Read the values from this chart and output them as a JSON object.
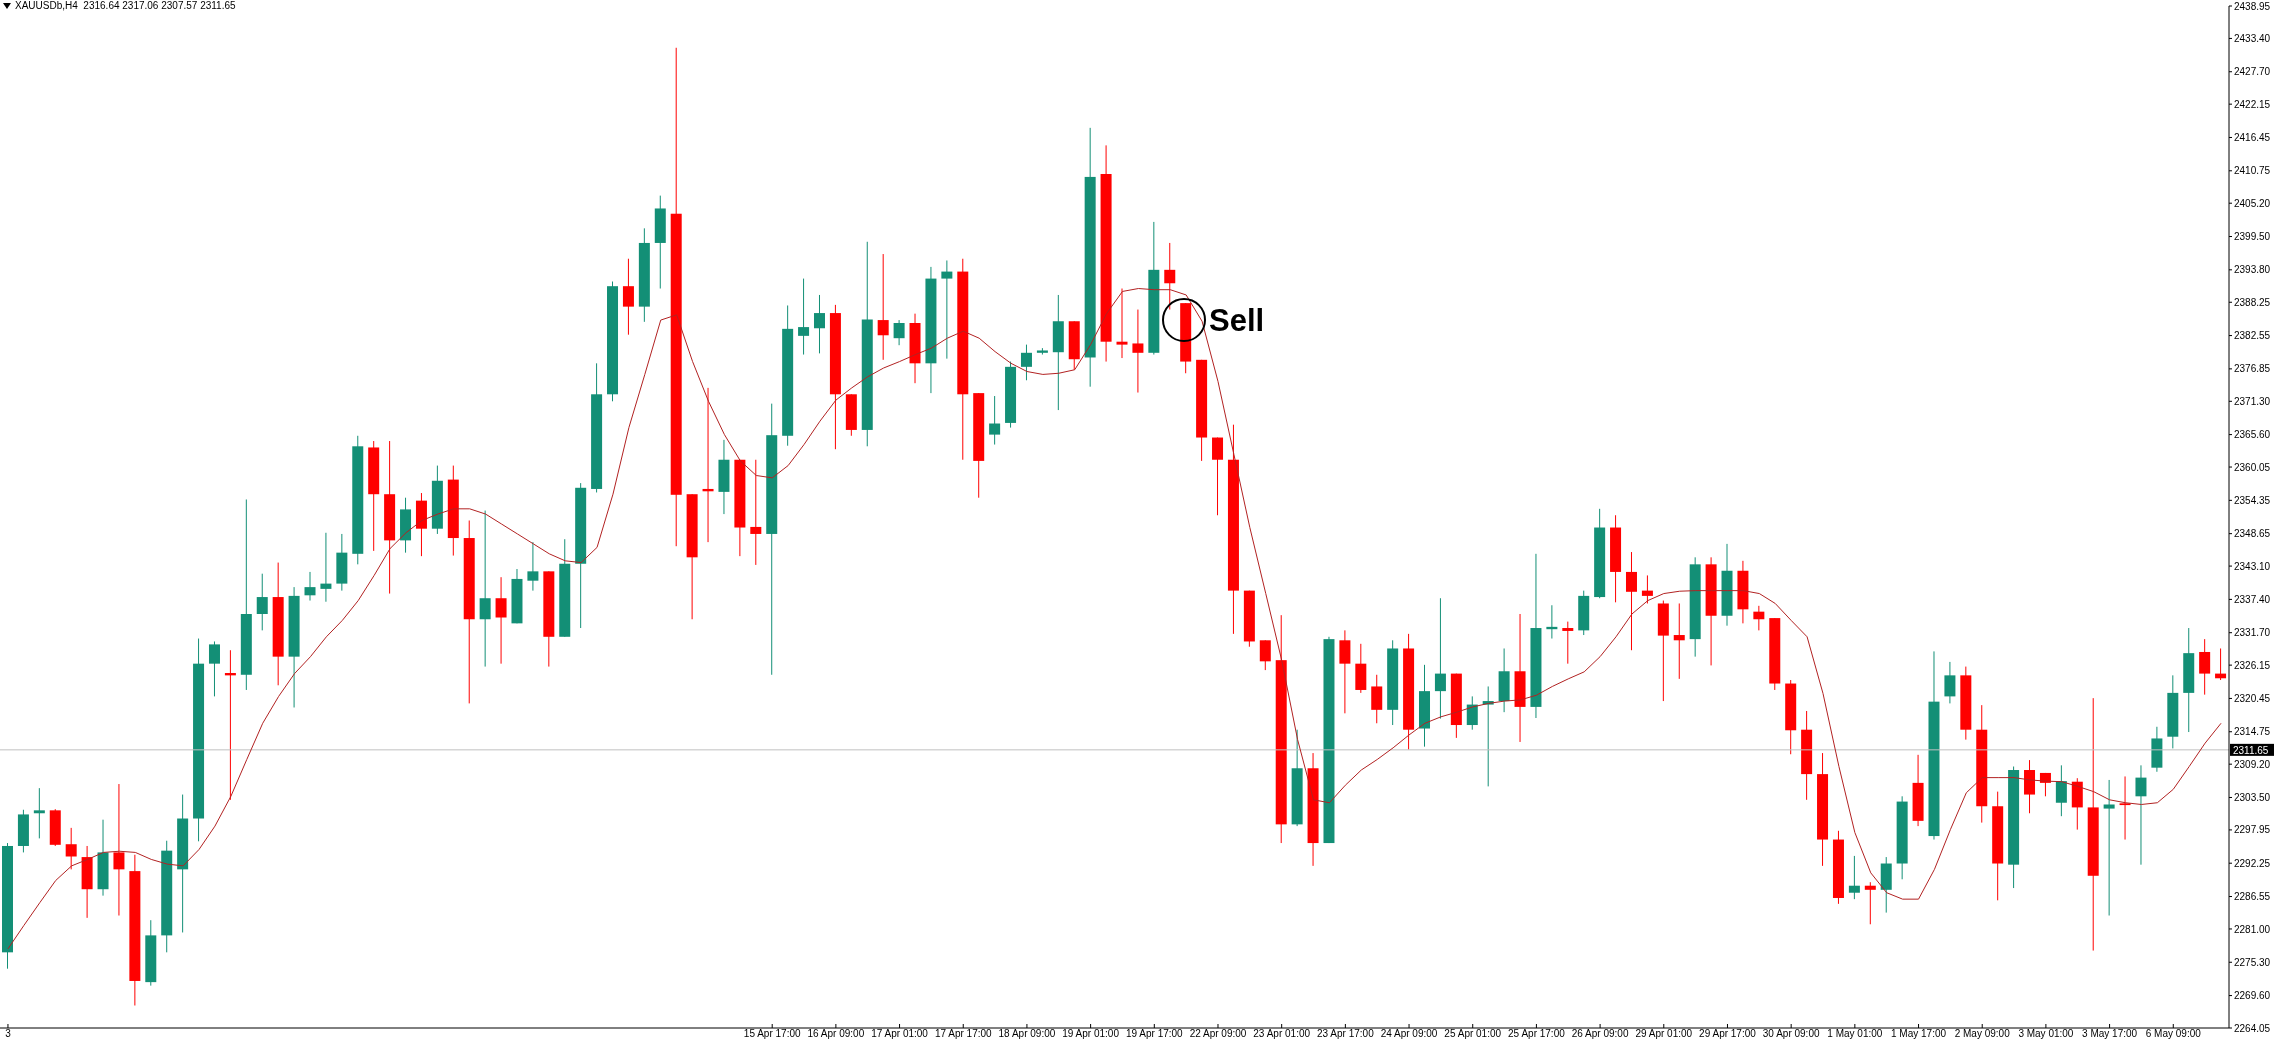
{
  "chart_data": {
    "type": "candlestick",
    "title": "XAUUSDb,H4  2316.64 2317.06 2307.57 2311.65",
    "categories": [
      "3",
      null,
      null,
      null,
      null,
      null,
      null,
      null,
      null,
      null,
      null,
      null,
      null,
      null,
      null,
      null,
      null,
      null,
      null,
      null,
      null,
      null,
      null,
      null,
      null,
      null,
      null,
      null,
      null,
      null,
      null,
      null,
      null,
      null,
      null,
      null,
      null,
      null,
      null,
      null,
      null,
      null,
      null,
      null,
      null,
      null,
      null,
      null,
      "15 Apr 17:00",
      null,
      null,
      null,
      "16 Apr 09:00",
      null,
      null,
      null,
      "17 Apr 01:00",
      null,
      null,
      null,
      "17 Apr 17:00",
      null,
      null,
      null,
      "18 Apr 09:00",
      null,
      null,
      null,
      "19 Apr 01:00",
      null,
      null,
      null,
      "19 Apr 17:00",
      null,
      null,
      null,
      "22 Apr 09:00",
      null,
      null,
      null,
      "23 Apr 01:00",
      null,
      null,
      null,
      "23 Apr 17:00",
      null,
      null,
      null,
      "24 Apr 09:00",
      null,
      null,
      null,
      "25 Apr 01:00",
      null,
      null,
      null,
      "25 Apr 17:00",
      null,
      null,
      null,
      "26 Apr 09:00",
      null,
      null,
      null,
      "29 Apr 01:00",
      null,
      null,
      null,
      "29 Apr 17:00",
      null,
      null,
      null,
      "30 Apr 09:00",
      null,
      null,
      null,
      "1 May 01:00",
      null,
      null,
      null,
      "1 May 17:00",
      null,
      null,
      null,
      "2 May 09:00",
      null,
      null,
      null,
      "3 May 01:00",
      null,
      null,
      null,
      "3 May 17:00",
      null,
      null,
      null,
      "6 May 09:00",
      null,
      null,
      null
    ],
    "ohlc": [
      [
        2277.0,
        2295.7,
        2274.2,
        2295.2
      ],
      [
        2295.2,
        2301.4,
        2294.1,
        2300.6
      ],
      [
        2300.8,
        2305.1,
        2296.5,
        2301.3
      ],
      [
        2301.3,
        2301.5,
        2295.2,
        2295.4
      ],
      [
        2295.5,
        2298.3,
        2291.2,
        2293.4
      ],
      [
        2293.3,
        2295.2,
        2282.9,
        2287.8
      ],
      [
        2287.8,
        2299.7,
        2286.7,
        2294.1
      ],
      [
        2294.1,
        2305.8,
        2283.3,
        2291.2
      ],
      [
        2290.9,
        2293.7,
        2267.9,
        2272.1
      ],
      [
        2271.9,
        2282.5,
        2271.3,
        2279.9
      ],
      [
        2279.9,
        2296.1,
        2277.0,
        2294.4
      ],
      [
        2291.2,
        2304.0,
        2280.4,
        2299.9
      ],
      [
        2299.9,
        2330.7,
        2296.0,
        2326.4
      ],
      [
        2326.4,
        2330.2,
        2320.8,
        2329.7
      ],
      [
        2324.8,
        2328.7,
        2303.1,
        2324.4
      ],
      [
        2324.5,
        2354.5,
        2321.9,
        2334.9
      ],
      [
        2334.9,
        2341.8,
        2332.1,
        2337.8
      ],
      [
        2337.8,
        2343.7,
        2322.7,
        2327.6
      ],
      [
        2327.6,
        2339.5,
        2318.9,
        2338.0
      ],
      [
        2338.1,
        2342.1,
        2337.2,
        2339.5
      ],
      [
        2339.2,
        2348.8,
        2337.0,
        2340.1
      ],
      [
        2340.1,
        2348.6,
        2338.9,
        2345.4
      ],
      [
        2345.2,
        2365.4,
        2343.4,
        2363.6
      ],
      [
        2363.4,
        2364.5,
        2345.7,
        2355.4
      ],
      [
        2355.4,
        2364.5,
        2338.4,
        2347.5
      ],
      [
        2347.5,
        2354.8,
        2345.4,
        2352.8
      ],
      [
        2354.3,
        2355.6,
        2344.8,
        2349.5
      ],
      [
        2349.5,
        2360.3,
        2348.6,
        2357.7
      ],
      [
        2357.9,
        2360.3,
        2344.9,
        2347.9
      ],
      [
        2347.9,
        2350.9,
        2319.6,
        2334.0
      ],
      [
        2334.0,
        2352.6,
        2325.9,
        2337.6
      ],
      [
        2337.6,
        2341.2,
        2326.4,
        2334.3
      ],
      [
        2333.3,
        2342.6,
        2333.3,
        2340.9
      ],
      [
        2340.6,
        2347.2,
        2338.9,
        2342.2
      ],
      [
        2342.2,
        2342.2,
        2325.9,
        2331.0
      ],
      [
        2331.0,
        2347.7,
        2331.0,
        2343.5
      ],
      [
        2343.5,
        2357.3,
        2332.5,
        2356.5
      ],
      [
        2356.3,
        2377.8,
        2355.7,
        2372.5
      ],
      [
        2372.5,
        2391.8,
        2371.3,
        2391.0
      ],
      [
        2391.0,
        2395.7,
        2382.7,
        2387.5
      ],
      [
        2387.5,
        2400.9,
        2384.9,
        2398.4
      ],
      [
        2398.4,
        2406.5,
        2390.6,
        2404.3
      ],
      [
        2403.4,
        2431.8,
        2346.5,
        2355.3
      ],
      [
        2355.4,
        2355.4,
        2334.0,
        2344.6
      ],
      [
        2356.3,
        2373.6,
        2347.2,
        2355.9
      ],
      [
        2355.8,
        2364.7,
        2352.0,
        2361.3
      ],
      [
        2361.3,
        2361.3,
        2344.8,
        2349.7
      ],
      [
        2349.8,
        2361.3,
        2343.3,
        2348.6
      ],
      [
        2348.6,
        2370.9,
        2324.5,
        2365.5
      ],
      [
        2365.4,
        2387.7,
        2363.7,
        2383.7
      ],
      [
        2382.5,
        2392.3,
        2379.3,
        2384.0
      ],
      [
        2383.8,
        2389.5,
        2379.5,
        2386.4
      ],
      [
        2386.4,
        2387.8,
        2363.1,
        2372.5
      ],
      [
        2372.5,
        2372.5,
        2365.4,
        2366.4
      ],
      [
        2366.4,
        2398.6,
        2363.6,
        2385.3
      ],
      [
        2385.2,
        2396.5,
        2378.4,
        2382.6
      ],
      [
        2382.1,
        2385.2,
        2380.9,
        2384.7
      ],
      [
        2384.7,
        2386.3,
        2374.4,
        2377.8
      ],
      [
        2377.8,
        2394.3,
        2372.7,
        2392.3
      ],
      [
        2392.3,
        2395.4,
        2378.6,
        2393.5
      ],
      [
        2393.5,
        2395.7,
        2361.3,
        2372.5
      ],
      [
        2372.7,
        2372.7,
        2354.8,
        2361.1
      ],
      [
        2365.6,
        2372.2,
        2363.9,
        2367.5
      ],
      [
        2367.6,
        2378.1,
        2366.8,
        2377.2
      ],
      [
        2377.2,
        2381.0,
        2374.9,
        2379.6
      ],
      [
        2379.6,
        2380.4,
        2379.3,
        2380.0
      ],
      [
        2379.7,
        2389.5,
        2369.8,
        2385.0
      ],
      [
        2385.0,
        2385.0,
        2376.7,
        2378.5
      ],
      [
        2378.8,
        2418.1,
        2373.8,
        2409.7
      ],
      [
        2410.2,
        2415.1,
        2378.1,
        2381.5
      ],
      [
        2381.5,
        2390.6,
        2378.7,
        2381.0
      ],
      [
        2381.2,
        2387.0,
        2372.8,
        2379.6
      ],
      [
        2379.6,
        2402.0,
        2379.3,
        2393.8
      ],
      [
        2393.8,
        2398.4,
        2387.0,
        2391.5
      ],
      [
        2388.1,
        2388.1,
        2376.1,
        2378.1
      ],
      [
        2378.4,
        2378.4,
        2361.1,
        2365.1
      ],
      [
        2365.1,
        2365.1,
        2351.8,
        2361.3
      ],
      [
        2361.3,
        2367.3,
        2331.5,
        2338.9
      ],
      [
        2338.9,
        2338.9,
        2329.3,
        2330.2
      ],
      [
        2330.4,
        2330.4,
        2325.3,
        2326.8
      ],
      [
        2327.0,
        2334.7,
        2295.7,
        2298.9
      ],
      [
        2298.9,
        2315.1,
        2298.6,
        2308.5
      ],
      [
        2308.5,
        2311.1,
        2291.8,
        2295.7
      ],
      [
        2295.7,
        2331.0,
        2295.7,
        2330.6
      ],
      [
        2330.4,
        2332.1,
        2317.9,
        2326.4
      ],
      [
        2326.4,
        2329.8,
        2321.4,
        2321.9
      ],
      [
        2322.5,
        2324.5,
        2316.2,
        2318.5
      ],
      [
        2318.5,
        2330.4,
        2315.9,
        2329.0
      ],
      [
        2329.0,
        2331.5,
        2311.7,
        2315.1
      ],
      [
        2315.3,
        2326.2,
        2312.2,
        2321.7
      ],
      [
        2321.7,
        2337.6,
        2317.0,
        2324.7
      ],
      [
        2324.7,
        2324.7,
        2313.7,
        2315.9
      ],
      [
        2315.9,
        2320.8,
        2315.1,
        2319.4
      ],
      [
        2319.4,
        2322.5,
        2305.4,
        2320.0
      ],
      [
        2320.0,
        2329.0,
        2318.1,
        2325.1
      ],
      [
        2325.1,
        2334.9,
        2313.0,
        2319.0
      ],
      [
        2319.0,
        2345.2,
        2317.1,
        2332.5
      ],
      [
        2332.3,
        2336.4,
        2330.7,
        2332.7
      ],
      [
        2332.5,
        2333.6,
        2326.4,
        2332.0
      ],
      [
        2332.1,
        2338.9,
        2331.3,
        2338.0
      ],
      [
        2337.8,
        2352.9,
        2337.6,
        2349.7
      ],
      [
        2349.7,
        2351.8,
        2336.9,
        2342.1
      ],
      [
        2342.1,
        2345.5,
        2328.7,
        2338.7
      ],
      [
        2338.9,
        2341.5,
        2336.7,
        2338.0
      ],
      [
        2336.7,
        2337.2,
        2320.0,
        2331.2
      ],
      [
        2331.3,
        2336.7,
        2323.8,
        2330.4
      ],
      [
        2330.6,
        2344.6,
        2327.6,
        2343.4
      ],
      [
        2343.4,
        2344.6,
        2326.1,
        2334.6
      ],
      [
        2334.6,
        2346.9,
        2332.9,
        2342.3
      ],
      [
        2342.3,
        2344.0,
        2333.3,
        2335.7
      ],
      [
        2335.3,
        2336.3,
        2332.1,
        2334.0
      ],
      [
        2334.2,
        2334.2,
        2321.9,
        2323.0
      ],
      [
        2323.0,
        2323.6,
        2310.9,
        2315.0
      ],
      [
        2315.1,
        2318.3,
        2303.1,
        2307.5
      ],
      [
        2307.5,
        2311.1,
        2291.8,
        2296.3
      ],
      [
        2296.3,
        2297.8,
        2285.3,
        2286.3
      ],
      [
        2287.2,
        2293.5,
        2286.1,
        2288.4
      ],
      [
        2288.4,
        2289.0,
        2281.8,
        2287.7
      ],
      [
        2287.7,
        2293.3,
        2283.8,
        2292.2
      ],
      [
        2292.2,
        2303.7,
        2289.5,
        2302.8
      ],
      [
        2306.0,
        2310.8,
        2298.6,
        2299.5
      ],
      [
        2296.9,
        2328.5,
        2296.3,
        2319.9
      ],
      [
        2320.8,
        2326.7,
        2319.6,
        2324.4
      ],
      [
        2324.4,
        2325.9,
        2313.4,
        2315.1
      ],
      [
        2315.1,
        2319.3,
        2299.2,
        2302.0
      ],
      [
        2302.0,
        2304.5,
        2285.9,
        2292.2
      ],
      [
        2292.0,
        2308.8,
        2288.0,
        2308.2
      ],
      [
        2308.2,
        2309.9,
        2300.8,
        2304.0
      ],
      [
        2307.7,
        2307.7,
        2303.7,
        2306.0
      ],
      [
        2302.6,
        2309.0,
        2300.3,
        2306.3
      ],
      [
        2306.2,
        2306.8,
        2298.0,
        2301.8
      ],
      [
        2301.8,
        2320.5,
        2277.3,
        2290.1
      ],
      [
        2301.6,
        2306.5,
        2283.3,
        2302.3
      ],
      [
        2302.5,
        2307.1,
        2296.3,
        2302.2
      ],
      [
        2303.7,
        2309.0,
        2292.0,
        2306.9
      ],
      [
        2308.6,
        2315.6,
        2307.9,
        2313.6
      ],
      [
        2313.9,
        2324.4,
        2311.9,
        2321.4
      ],
      [
        2321.4,
        2332.5,
        2314.7,
        2328.2
      ],
      [
        2328.4,
        2330.6,
        2321.1,
        2324.7
      ],
      [
        2324.7,
        2329.0,
        2323.6,
        2323.9
      ]
    ],
    "colors": [
      "#138f76",
      "#138f76",
      "#138f76",
      "#ff0000",
      "#ff0000",
      "#ff0000",
      "#138f76",
      "#ff0000",
      "#ff0000",
      "#138f76",
      "#138f76",
      "#138f76",
      "#138f76",
      "#138f76",
      "#ff0000",
      "#138f76",
      "#138f76",
      "#ff0000",
      "#138f76",
      "#138f76",
      "#138f76",
      "#138f76",
      "#138f76",
      "#ff0000",
      "#ff0000",
      "#138f76",
      "#ff0000",
      "#138f76",
      "#ff0000",
      "#ff0000",
      "#138f76",
      "#ff0000",
      "#138f76",
      "#138f76",
      "#ff0000",
      "#138f76",
      "#138f76",
      "#138f76",
      "#138f76",
      "#ff0000",
      "#138f76",
      "#138f76",
      "#ff0000",
      "#ff0000",
      "#ff0000",
      "#138f76",
      "#ff0000",
      "#ff0000",
      "#138f76",
      "#138f76",
      "#138f76",
      "#138f76",
      "#ff0000",
      "#ff0000",
      "#138f76",
      "#ff0000",
      "#138f76",
      "#ff0000",
      "#138f76",
      "#138f76",
      "#ff0000",
      "#ff0000",
      "#138f76",
      "#138f76",
      "#138f76",
      "#138f76",
      "#138f76",
      "#ff0000",
      "#138f76",
      "#ff0000",
      "#ff0000",
      "#ff0000",
      "#138f76",
      "#ff0000",
      "#ff0000",
      "#ff0000",
      "#ff0000",
      "#ff0000",
      "#ff0000",
      "#ff0000",
      "#ff0000",
      "#138f76",
      "#ff0000",
      "#138f76",
      "#ff0000",
      "#ff0000",
      "#ff0000",
      "#138f76",
      "#ff0000",
      "#138f76",
      "#138f76",
      "#ff0000",
      "#138f76",
      "#138f76",
      "#138f76",
      "#ff0000",
      "#138f76",
      "#138f76",
      "#ff0000",
      "#138f76",
      "#138f76",
      "#ff0000",
      "#ff0000",
      "#ff0000",
      "#ff0000",
      "#ff0000",
      "#138f76",
      "#ff0000",
      "#138f76",
      "#ff0000",
      "#ff0000",
      "#ff0000",
      "#ff0000",
      "#ff0000",
      "#ff0000",
      "#ff0000",
      "#138f76",
      "#ff0000",
      "#138f76",
      "#138f76",
      "#ff0000",
      "#138f76",
      "#138f76",
      "#ff0000",
      "#ff0000",
      "#ff0000",
      "#138f76",
      "#ff0000",
      "#ff0000",
      "#138f76",
      "#ff0000",
      "#ff0000",
      "#138f76",
      "#ff0000",
      "#138f76",
      "#138f76",
      "#138f76",
      "#138f76",
      "#ff0000",
      "#ff0000"
    ],
    "series": [
      {
        "type": "line",
        "color": "#b22222",
        "values": [
          2277.6,
          2281.6,
          2285.5,
          2289.3,
          2291.8,
          2292.9,
          2294.1,
          2294.3,
          2294.1,
          2292.9,
          2292.1,
          2291.8,
          2294.6,
          2298.6,
          2303.7,
          2310.0,
          2316.2,
          2320.8,
          2324.7,
          2327.6,
          2331.0,
          2333.8,
          2337.2,
          2341.5,
          2346.1,
          2348.8,
          2350.9,
          2352.0,
          2352.9,
          2352.9,
          2352.0,
          2350.3,
          2348.6,
          2346.9,
          2345.2,
          2344.0,
          2343.7,
          2346.3,
          2355.4,
          2366.8,
          2375.9,
          2385.2,
          2386.1,
          2378.1,
          2371.3,
          2365.6,
          2361.1,
          2358.6,
          2358.2,
          2360.3,
          2363.9,
          2367.9,
          2371.5,
          2373.6,
          2375.5,
          2377.0,
          2378.1,
          2379.3,
          2380.4,
          2382.1,
          2383.3,
          2382.1,
          2379.8,
          2377.8,
          2376.4,
          2375.9,
          2376.1,
          2376.7,
          2381.0,
          2386.3,
          2390.1,
          2390.6,
          2390.4,
          2390.4,
          2389.5,
          2385.0,
          2374.7,
          2362.2,
          2349.7,
          2338.4,
          2327.0,
          2313.4,
          2303.1,
          2302.6,
          2305.6,
          2308.2,
          2310.0,
          2312.0,
          2314.2,
          2316.2,
          2317.3,
          2318.1,
          2319.0,
          2319.6,
          2320.0,
          2320.2,
          2321.0,
          2322.5,
          2323.8,
          2325.0,
          2327.6,
          2331.0,
          2334.9,
          2337.2,
          2338.4,
          2338.8,
          2338.9,
          2338.9,
          2338.9,
          2338.9,
          2338.4,
          2336.7,
          2333.8,
          2331.0,
          2321.3,
          2308.8,
          2297.5,
          2290.6,
          2287.2,
          2286.1,
          2286.1,
          2291.2,
          2298.0,
          2304.3,
          2306.9,
          2306.9,
          2306.9,
          2306.5,
          2306.3,
          2306.2,
          2305.4,
          2304.5,
          2303.1,
          2302.6,
          2302.3,
          2302.6,
          2304.9,
          2308.8,
          2312.8,
          2316.2
        ]
      }
    ],
    "ylim": [
      2264.05,
      2438.95
    ],
    "yticks": [
      2438.95,
      {
        "value": 2433.4,
        "label": "2433.40"
      },
      {
        "value": 2427.7,
        "label": "2427.70"
      },
      2422.15,
      2416.45,
      2410.75,
      {
        "value": 2405.2,
        "label": "2405.20"
      },
      {
        "value": 2399.5,
        "label": "2399.50"
      },
      {
        "value": 2393.8,
        "label": "2393.80"
      },
      2388.25,
      2382.55,
      2376.85,
      {
        "value": 2371.3,
        "label": "2371.30"
      },
      {
        "value": 2365.6,
        "label": "2365.60"
      },
      2360.05,
      2354.35,
      2348.65,
      {
        "value": 2343.1,
        "label": "2343.10"
      },
      {
        "value": 2337.4,
        "label": "2337.40"
      },
      {
        "value": 2331.7,
        "label": "2331.70"
      },
      2326.15,
      2320.45,
      2314.75,
      {
        "value": 2309.2,
        "label": "2309.20"
      },
      {
        "value": 2303.5,
        "label": "2303.50"
      },
      2297.95,
      2292.25,
      2286.55,
      {
        "value": 2281,
        "label": "2281.00"
      },
      {
        "value": 2275.3,
        "label": "2275.30"
      },
      {
        "value": 2269.6,
        "label": "2269.60"
      },
      2264.05
    ],
    "ref_lines": [
      {
        "axis": "y",
        "value": 2311.65,
        "label": "2311.65",
        "color": "#c0c0c0"
      }
    ],
    "annotations": [
      "Sell"
    ]
  }
}
